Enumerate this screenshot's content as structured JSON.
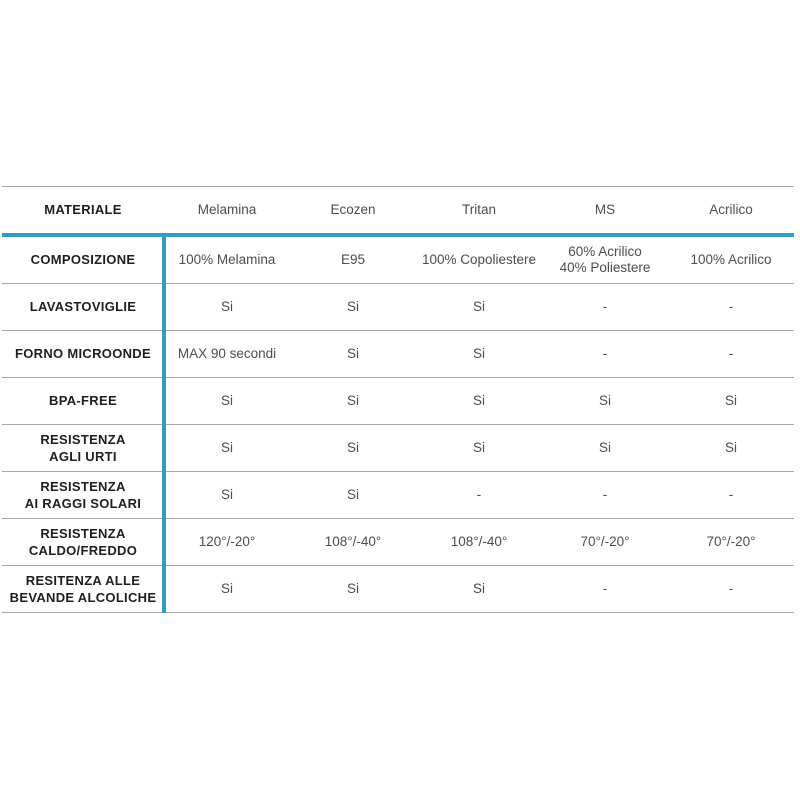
{
  "colors": {
    "accent": "#2f9dc3",
    "grid_line": "#a8a8a8",
    "label_text": "#1b1f24",
    "cell_text": "#4d4d4d",
    "background": "#ffffff"
  },
  "chart_data": {
    "type": "table",
    "header_label": "MATERIALE",
    "columns": [
      "Melamina",
      "Ecozen",
      "Tritan",
      "MS",
      "Acrilico"
    ],
    "rows": [
      {
        "label": "COMPOSIZIONE",
        "values": [
          "100% Melamina",
          "E95",
          "100% Copoliestere",
          "60% Acrilico\n40% Poliestere",
          "100% Acrilico"
        ]
      },
      {
        "label": "LAVASTOVIGLIE",
        "values": [
          "Si",
          "Si",
          "Si",
          "-",
          "-"
        ]
      },
      {
        "label": "FORNO MICROONDE",
        "values": [
          "MAX 90 secondi",
          "Si",
          "Si",
          "-",
          "-"
        ]
      },
      {
        "label": "BPA-FREE",
        "values": [
          "Si",
          "Si",
          "Si",
          "Si",
          "Si"
        ]
      },
      {
        "label": "RESISTENZA\nAGLI URTI",
        "values": [
          "Si",
          "Si",
          "Si",
          "Si",
          "Si"
        ]
      },
      {
        "label": "RESISTENZA\nAI RAGGI SOLARI",
        "values": [
          "Si",
          "Si",
          "-",
          "-",
          "-"
        ]
      },
      {
        "label": "RESISTENZA\nCALDO/FREDDO",
        "values": [
          "120°/-20°",
          "108°/-40°",
          "108°/-40°",
          "70°/-20°",
          "70°/-20°"
        ]
      },
      {
        "label": "RESITENZA ALLE\nBEVANDE ALCOLICHE",
        "values": [
          "Si",
          "Si",
          "Si",
          "-",
          "-"
        ]
      }
    ]
  }
}
